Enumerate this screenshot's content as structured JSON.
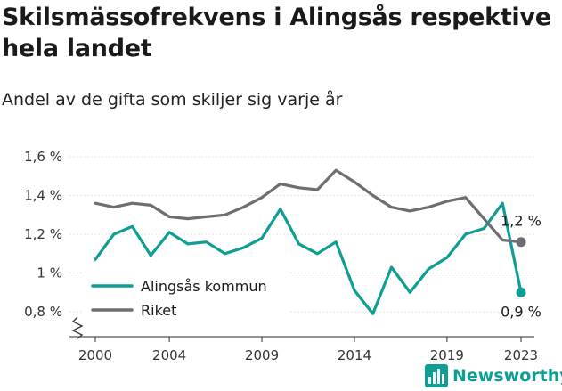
{
  "header": {
    "title": "Skilsmässofrekvens i Alingsås respektive hela landet",
    "subtitle": "Andel av de gifta som skiljer sig varje år"
  },
  "brand": {
    "name": "Newsworthy",
    "icon": "bar-chart-logo-icon"
  },
  "colors": {
    "teal": "#0f9e93",
    "gray": "#6d6d73",
    "grid": "#d6d6d6",
    "axis": "#555555"
  },
  "chart_data": {
    "type": "line",
    "title": "Skilsmässofrekvens i Alingsås respektive hela landet",
    "subtitle": "Andel av de gifta som skiljer sig varje år",
    "xlabel": "",
    "ylabel": "",
    "x": [
      2000,
      2001,
      2002,
      2003,
      2004,
      2005,
      2006,
      2007,
      2008,
      2009,
      2010,
      2011,
      2012,
      2013,
      2014,
      2015,
      2016,
      2017,
      2018,
      2019,
      2020,
      2021,
      2022,
      2023
    ],
    "xticks": [
      "2000",
      "2004",
      "2009",
      "2014",
      "2019",
      "2023"
    ],
    "yticks": [
      "0,8 %",
      "1 %",
      "1,2 %",
      "1,4 %",
      "1,6 %"
    ],
    "ylim": [
      0.8,
      1.6
    ],
    "y_axis_break": true,
    "grid": "horizontal",
    "legend_position": "bottom-left",
    "series": [
      {
        "name": "Alingsås kommun",
        "color": "#0f9e93",
        "values": [
          1.07,
          1.2,
          1.24,
          1.09,
          1.21,
          1.15,
          1.16,
          1.1,
          1.13,
          1.18,
          1.33,
          1.15,
          1.1,
          1.16,
          0.91,
          0.79,
          1.03,
          0.9,
          1.02,
          1.08,
          1.2,
          1.23,
          1.36,
          0.9
        ],
        "end_label": "0,9 %"
      },
      {
        "name": "Riket",
        "color": "#6d6d73",
        "values": [
          1.36,
          1.34,
          1.36,
          1.35,
          1.29,
          1.28,
          1.29,
          1.3,
          1.34,
          1.39,
          1.46,
          1.44,
          1.43,
          1.53,
          1.47,
          1.4,
          1.34,
          1.32,
          1.34,
          1.37,
          1.39,
          1.28,
          1.17,
          1.16
        ],
        "end_label": "1,2 %"
      }
    ]
  }
}
